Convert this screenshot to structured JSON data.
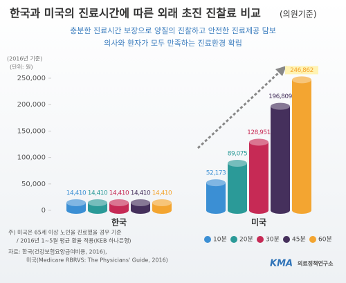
{
  "chart_data": {
    "type": "bar",
    "title": "한국과 미국의 진료시간에 따른 외래 초진 진찰료 비교",
    "title_suffix": "(의원기준)",
    "subtitle": [
      "충분한 진료시간 보장으로 양질의 진찰하고 안전한 진료제공 담보",
      "의사와 환자가 모두 만족하는 진료환경 확립"
    ],
    "unit_notes": [
      "(2016년 기준)",
      "(단위: 원)"
    ],
    "categories": [
      "한국",
      "미국"
    ],
    "series": [
      {
        "name": "10분",
        "color": "#3b8fd4",
        "values": [
          14410,
          52173
        ],
        "value_labels": [
          "14,410",
          "52,173"
        ]
      },
      {
        "name": "20분",
        "color": "#2b9a98",
        "values": [
          14410,
          89075
        ],
        "value_labels": [
          "14,410",
          "89,075"
        ]
      },
      {
        "name": "30분",
        "color": "#c62a55",
        "values": [
          14410,
          128951
        ],
        "value_labels": [
          "14,410",
          "128,951"
        ]
      },
      {
        "name": "45분",
        "color": "#45305c",
        "values": [
          14410,
          196809
        ],
        "value_labels": [
          "14,410",
          "196,809"
        ]
      },
      {
        "name": "60분",
        "color": "#f3a531",
        "values": [
          14410,
          246862
        ],
        "value_labels": [
          "14,410",
          "246,862"
        ]
      }
    ],
    "ylim": [
      0,
      250000
    ],
    "yticks": [
      0,
      {
        "value": 50000,
        "label": "50,000"
      },
      {
        "value": 100000,
        "label": "100,000"
      },
      {
        "value": 150000,
        "label": "150,000"
      },
      {
        "value": 200000,
        "label": "200,000"
      },
      {
        "value": 250000,
        "label": "250,000"
      }
    ],
    "notes": [
      "주) 미국은 65세 이상 노인을 진료했을 경우 기준",
      "/ 2016년 1~5월 평균 환율 적용(KEB 하나은행)",
      "자료: 한국(건강보험요양급여비용, 2016),",
      "미국(Medicare RBRVS: The Physicians' Guide, 2016)"
    ],
    "logo": [
      "KMA",
      "의료정책연구소"
    ]
  }
}
